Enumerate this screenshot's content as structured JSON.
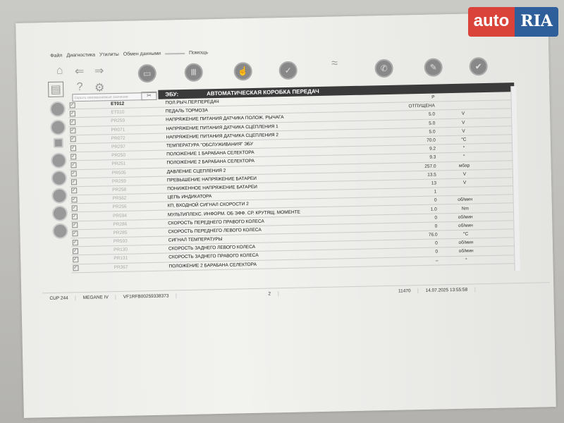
{
  "logo": {
    "text1": "auto",
    "text2": "RIA"
  },
  "menu": [
    "Файл",
    "Диагностика",
    "Утилиты",
    "Обмен данными",
    "Помощь"
  ],
  "search": {
    "placeholder": "Скрыть неизменяемые значения"
  },
  "header": {
    "label": "ЭБУ:",
    "title": "АВТОМАТИЧЕСКАЯ КОРОБКА ПЕРЕДАЧ"
  },
  "rows": [
    {
      "code": "ET012",
      "name": "ПОЛ.РЫЧ.ПЕР.ПЕРЕДАЧ",
      "value": "P",
      "unit": ""
    },
    {
      "code": "ET010",
      "name": "ПЕДАЛЬ ТОРМОЗА",
      "value": "ОТПУЩЕНА",
      "unit": ""
    },
    {
      "code": "PR259",
      "name": "НАПРЯЖЕНИЕ ПИТАНИЯ ДАТЧИКА ПОЛОЖ. РЫЧАГА",
      "value": "5.0",
      "unit": "V"
    },
    {
      "code": "PR071",
      "name": "НАПРЯЖЕНИЕ ПИТАНИЯ ДАТЧИКА СЦЕПЛЕНИЯ 1",
      "value": "5.0",
      "unit": "V"
    },
    {
      "code": "PR072",
      "name": "НАПРЯЖЕНИЕ ПИТАНИЯ ДАТЧИКА СЦЕПЛЕНИЯ 2",
      "value": "5.0",
      "unit": "V"
    },
    {
      "code": "PR297",
      "name": "ТЕМПЕРАТУРА \"ОБСЛУЖИВАНИЯ\" ЭБУ",
      "value": "70.0",
      "unit": "°C"
    },
    {
      "code": "PR250",
      "name": "ПОЛОЖЕНИЕ 1 БАРАБАНА СЕЛЕКТОРА",
      "value": "9.2",
      "unit": "°"
    },
    {
      "code": "PR251",
      "name": "ПОЛОЖЕНИЕ 2 БАРАБАНА СЕЛЕКТОРА",
      "value": "9.3",
      "unit": "°"
    },
    {
      "code": "PR505",
      "name": "ДАВЛЕНИЕ СЦЕПЛЕНИЯ 2",
      "value": "257.0",
      "unit": "мбар"
    },
    {
      "code": "PR259",
      "name": "ПРЕВЫШЕНИЕ НАПРЯЖЕНИЕ БАТАРЕИ",
      "value": "13.5",
      "unit": "V"
    },
    {
      "code": "PR258",
      "name": "ПОНИЖЕННОЕ НАПРЯЖЕНИЕ БАТАРЕИ",
      "value": "13",
      "unit": "V"
    },
    {
      "code": "PR562",
      "name": "ЦЕПЬ ИНДИКАТОРА",
      "value": "1",
      "unit": ""
    },
    {
      "code": "PR256",
      "name": "КП, ВХОДНОЙ СИГНАЛ СКОРОСТИ 2",
      "value": "0",
      "unit": "об/мин"
    },
    {
      "code": "PR594",
      "name": "МУЛЬТИПЛЕКС. ИНФОРМ. ОБ ЭФФ. СР. КРУТЯЩ. МОМЕНТЕ",
      "value": "1.0",
      "unit": "Nm"
    },
    {
      "code": "PR286",
      "name": "СКОРОСТЬ ПЕРЕДНЕГО ПРАВОГО КОЛЕСА",
      "value": "0",
      "unit": "об/мин"
    },
    {
      "code": "PR285",
      "name": "СКОРОСТЬ ПЕРЕДНЕГО ЛЕВОГО КОЛЕСА",
      "value": "0",
      "unit": "об/мин"
    },
    {
      "code": "PR593",
      "name": "СИГНАЛ ТЕМПЕРАТУРЫ",
      "value": "76.0",
      "unit": "°C"
    },
    {
      "code": "PR130",
      "name": "СКОРОСТЬ ЗАДНЕГО ЛЕВОГО КОЛЕСА",
      "value": "0",
      "unit": "об/мин"
    },
    {
      "code": "PR131",
      "name": "СКОРОСТЬ ЗАДНЕГО ПРАВОГО КОЛЕСА",
      "value": "0",
      "unit": "об/мин"
    },
    {
      "code": "PR367",
      "name": "ПОЛОЖЕНИЕ 2 БАРАБАНА СЕЛЕКТОРА",
      "value": "–",
      "unit": "°"
    }
  ],
  "status": [
    "CUP 244",
    "MEGANE IV",
    "VF1RFB00259338373",
    "2",
    "11470",
    "14.07.2025 13:55:58"
  ]
}
